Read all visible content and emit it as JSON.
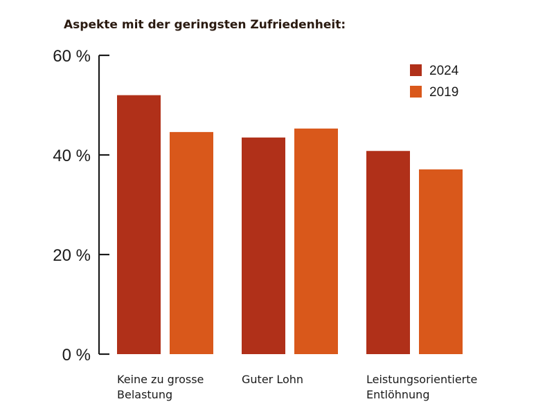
{
  "chart_data": {
    "type": "bar",
    "title": "Aspekte mit der geringsten Zufriedenheit:",
    "xlabel": "",
    "ylabel": "",
    "ylim": [
      0,
      60
    ],
    "yticks": [
      {
        "value": 0,
        "label": "0 %"
      },
      {
        "value": 20,
        "label": "20 %"
      },
      {
        "value": 40,
        "label": "40 %"
      },
      {
        "value": 60,
        "label": "60 %"
      }
    ],
    "categories": [
      [
        "Keine zu grosse",
        "Belastung"
      ],
      [
        "Guter Lohn"
      ],
      [
        "Leistungsorientierte",
        "Entlöhnung"
      ]
    ],
    "series": [
      {
        "name": "2024",
        "color": "#b03019",
        "values": [
          52,
          43.5,
          40.8
        ]
      },
      {
        "name": "2019",
        "color": "#d9581b",
        "values": [
          44.6,
          45.3,
          37.1
        ]
      }
    ],
    "legend_position": "top-right",
    "grid": false
  }
}
